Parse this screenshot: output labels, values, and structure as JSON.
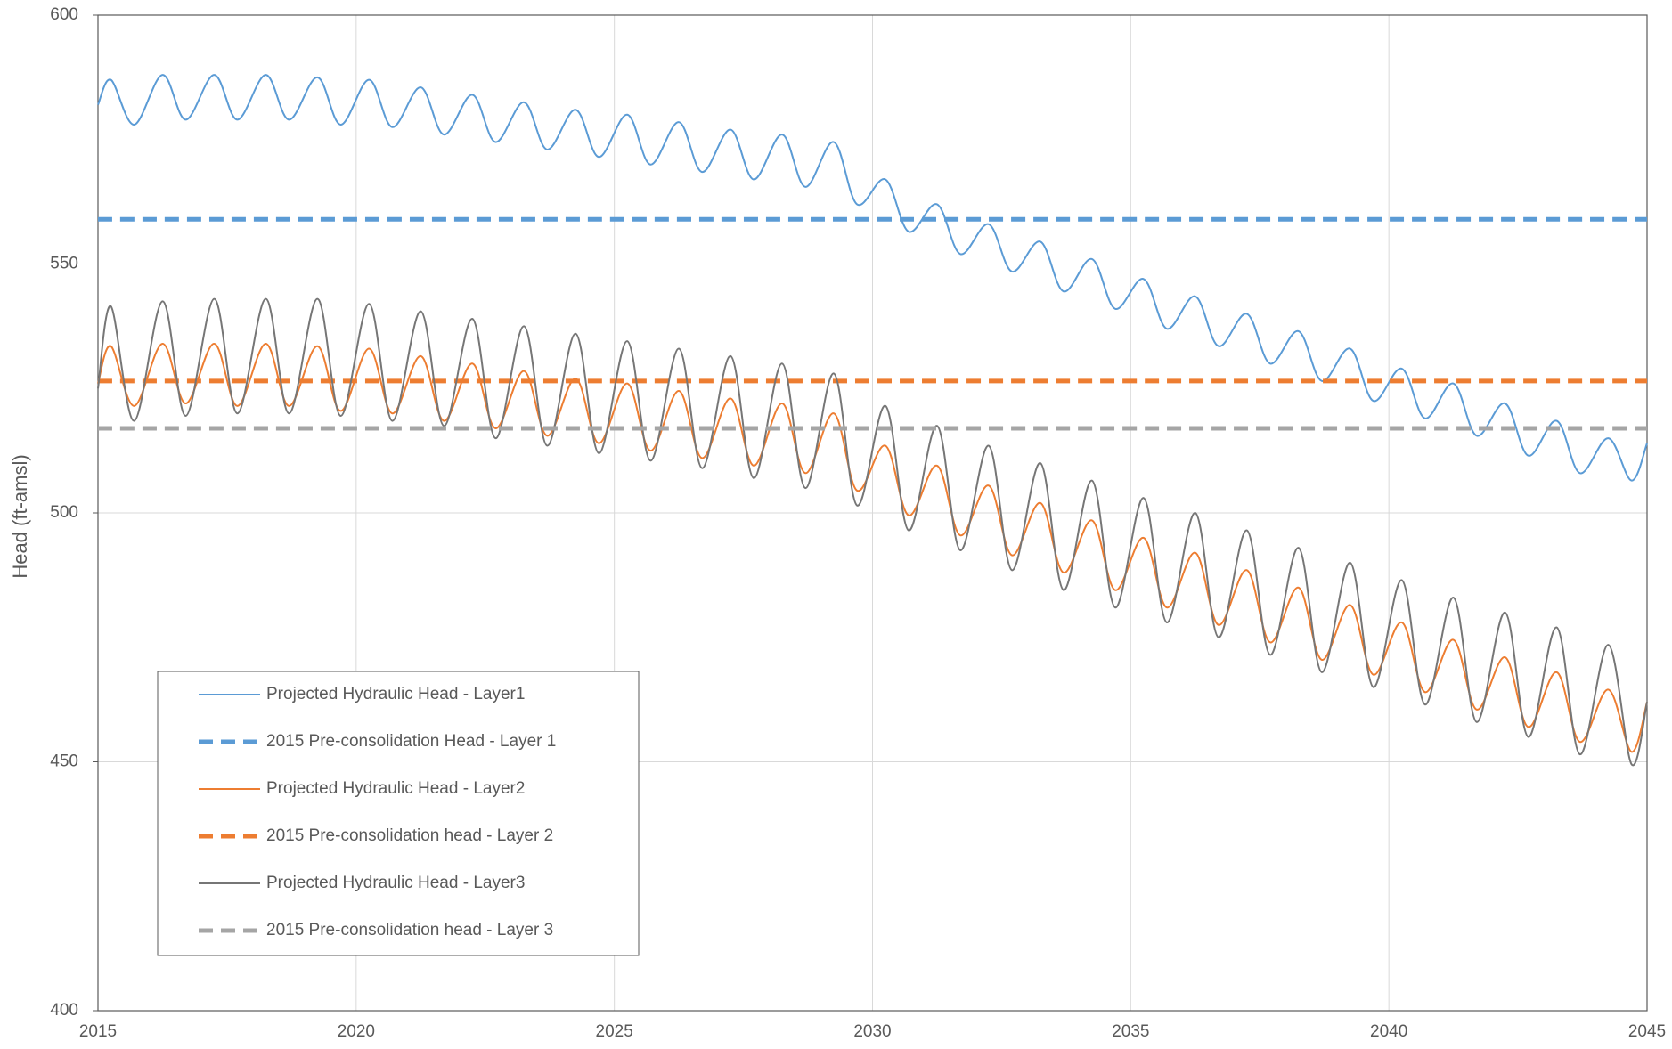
{
  "chart_data": {
    "type": "line",
    "y_label": "Head (ft-amsl)",
    "xlim": [
      2015,
      2045
    ],
    "xticks": [
      2015,
      2020,
      2025,
      2030,
      2035,
      2040,
      2045
    ],
    "ylim": [
      400,
      600
    ],
    "yticks": [
      400,
      450,
      500,
      550,
      600
    ],
    "grid": true,
    "legend": "lower left",
    "series": [
      {
        "name": "Projected Hydraulic Head - Layer1",
        "color": "#5b9bd5",
        "line_style": "solid",
        "x": [
          2015,
          2015.25,
          2015.7,
          2016.25,
          2016.7,
          2017.25,
          2017.7,
          2018.25,
          2018.7,
          2019.25,
          2019.7,
          2020.25,
          2020.7,
          2021.25,
          2021.7,
          2022.25,
          2022.7,
          2023.25,
          2023.7,
          2024.25,
          2024.7,
          2025.25,
          2025.7,
          2026.25,
          2026.7,
          2027.25,
          2027.7,
          2028.25,
          2028.7,
          2029.25,
          2029.7,
          2030.25,
          2030.7,
          2031.25,
          2031.7,
          2032.25,
          2032.7,
          2033.25,
          2033.7,
          2034.25,
          2034.7,
          2035.25,
          2035.7,
          2036.25,
          2036.7,
          2037.25,
          2037.7,
          2038.25,
          2038.7,
          2039.25,
          2039.7,
          2040.25,
          2040.7,
          2041.25,
          2041.7,
          2042.25,
          2042.7,
          2043.25,
          2043.7,
          2044.25,
          2044.7,
          2045
        ],
        "values": [
          582,
          587,
          578,
          588,
          579,
          588,
          579,
          588,
          579,
          587.5,
          578,
          587,
          577.5,
          585.5,
          576,
          584,
          574.5,
          582.5,
          573,
          581,
          571.5,
          580,
          570,
          578.5,
          568.5,
          577,
          567,
          576,
          565.5,
          574.5,
          562,
          567,
          556.5,
          562,
          552,
          558,
          548.5,
          554.5,
          544.5,
          551,
          541,
          547,
          537,
          543.5,
          533.5,
          540,
          530,
          536.5,
          526.5,
          533,
          522.5,
          529,
          519,
          526,
          515.5,
          522,
          511.5,
          518.5,
          508,
          515,
          506.5,
          514
        ]
      },
      {
        "name": "2015 Pre-consolidation Head - Layer 1",
        "color": "#5b9bd5",
        "line_style": "dashed",
        "x": [
          2015,
          2045
        ],
        "values": [
          559,
          559
        ]
      },
      {
        "name": "Projected Hydraulic Head - Layer2",
        "color": "#ed7d31",
        "line_style": "solid",
        "x": [
          2015,
          2015.25,
          2015.7,
          2016.25,
          2016.7,
          2017.25,
          2017.7,
          2018.25,
          2018.7,
          2019.25,
          2019.7,
          2020.25,
          2020.7,
          2021.25,
          2021.7,
          2022.25,
          2022.7,
          2023.25,
          2023.7,
          2024.25,
          2024.7,
          2025.25,
          2025.7,
          2026.25,
          2026.7,
          2027.25,
          2027.7,
          2028.25,
          2028.7,
          2029.25,
          2029.7,
          2030.25,
          2030.7,
          2031.25,
          2031.7,
          2032.25,
          2032.7,
          2033.25,
          2033.7,
          2034.25,
          2034.7,
          2035.25,
          2035.7,
          2036.25,
          2036.7,
          2037.25,
          2037.7,
          2038.25,
          2038.7,
          2039.25,
          2039.7,
          2040.25,
          2040.7,
          2041.25,
          2041.7,
          2042.25,
          2042.7,
          2043.25,
          2043.7,
          2044.25,
          2044.7,
          2045
        ],
        "values": [
          526,
          533.5,
          521.5,
          534,
          522,
          534,
          521.5,
          534,
          521.5,
          533.5,
          520.5,
          533,
          520,
          531.5,
          518.5,
          530,
          517,
          528.5,
          515.5,
          527,
          514,
          526,
          512.5,
          524.5,
          511,
          523,
          509.5,
          522,
          508,
          520,
          504.5,
          513.5,
          499.5,
          509.5,
          495.5,
          505.5,
          491.5,
          502,
          488,
          498.5,
          484.5,
          495,
          481,
          492,
          477.5,
          488.5,
          474,
          485,
          470.5,
          481.5,
          467.5,
          478,
          464,
          474.5,
          460.5,
          471,
          457,
          468,
          454,
          464.5,
          452,
          462
        ]
      },
      {
        "name": "2015 Pre-consolidation head - Layer 2",
        "color": "#ed7d31",
        "line_style": "dashed",
        "x": [
          2015,
          2045
        ],
        "values": [
          526.5,
          526.5
        ]
      },
      {
        "name": "Projected Hydraulic Head - Layer3",
        "color": "#767676",
        "line_style": "solid",
        "x": [
          2015,
          2015.25,
          2015.7,
          2016.25,
          2016.7,
          2017.25,
          2017.7,
          2018.25,
          2018.7,
          2019.25,
          2019.7,
          2020.25,
          2020.7,
          2021.25,
          2021.7,
          2022.25,
          2022.7,
          2023.25,
          2023.7,
          2024.25,
          2024.7,
          2025.25,
          2025.7,
          2026.25,
          2026.7,
          2027.25,
          2027.7,
          2028.25,
          2028.7,
          2029.25,
          2029.7,
          2030.25,
          2030.7,
          2031.25,
          2031.7,
          2032.25,
          2032.7,
          2033.25,
          2033.7,
          2034.25,
          2034.7,
          2035.25,
          2035.7,
          2036.25,
          2036.7,
          2037.25,
          2037.7,
          2038.25,
          2038.7,
          2039.25,
          2039.7,
          2040.25,
          2040.7,
          2041.25,
          2041.7,
          2042.25,
          2042.7,
          2043.25,
          2043.7,
          2044.25,
          2044.7,
          2045
        ],
        "values": [
          525,
          541.5,
          518.5,
          542.5,
          519.5,
          543,
          520,
          543,
          520,
          543,
          519.5,
          542,
          518.5,
          540.5,
          517.5,
          539,
          515,
          537.5,
          513.5,
          536,
          512,
          534.5,
          510.5,
          533,
          509,
          531.5,
          507,
          530,
          505,
          528,
          501.5,
          521.5,
          496.5,
          517.5,
          492.5,
          513.5,
          488.5,
          510,
          484.5,
          506.5,
          481,
          503,
          478,
          500,
          475,
          496.5,
          471.5,
          493,
          468,
          490,
          465,
          486.5,
          461.5,
          483,
          458,
          480,
          455,
          477,
          451.5,
          473.5,
          449.5,
          462
        ]
      },
      {
        "name": "2015 Pre-consolidation head - Layer 3",
        "color": "#a5a5a5",
        "line_style": "dashed",
        "x": [
          2015,
          2045
        ],
        "values": [
          517,
          517
        ]
      }
    ]
  }
}
